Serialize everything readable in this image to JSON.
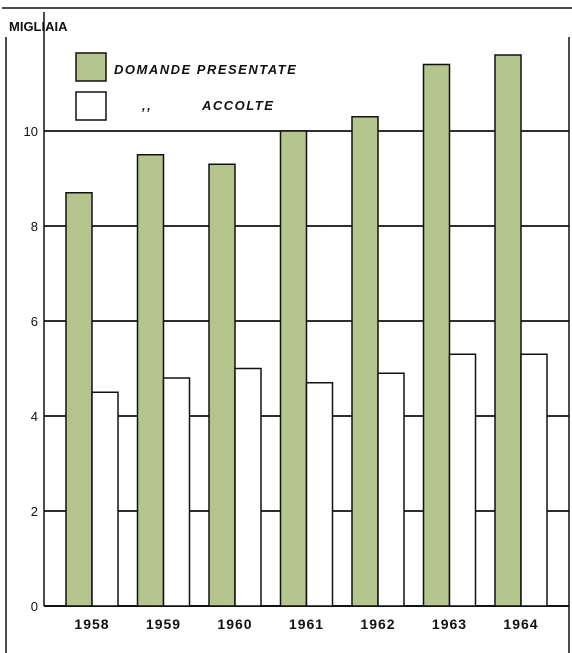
{
  "chart_data": {
    "type": "bar",
    "unit_label": "MIGLIAIA",
    "categories": [
      "1958",
      "1959",
      "1960",
      "1961",
      "1962",
      "1963",
      "1964"
    ],
    "series": [
      {
        "name": "DOMANDE PRESENTATE",
        "values": [
          8.7,
          9.5,
          9.3,
          10.0,
          10.3,
          11.4,
          11.6
        ],
        "color": "#b5c48c"
      },
      {
        "name": "ACCOLTE",
        "values": [
          4.5,
          4.8,
          5.0,
          4.7,
          4.9,
          5.3,
          5.3
        ],
        "color": "#ffffff"
      }
    ],
    "legend_ditto": ",,",
    "y_ticks": [
      "0",
      "2",
      "4",
      "6",
      "8",
      "10"
    ],
    "ylim": [
      0,
      12
    ],
    "grid": true,
    "legend_position": "top-left"
  }
}
